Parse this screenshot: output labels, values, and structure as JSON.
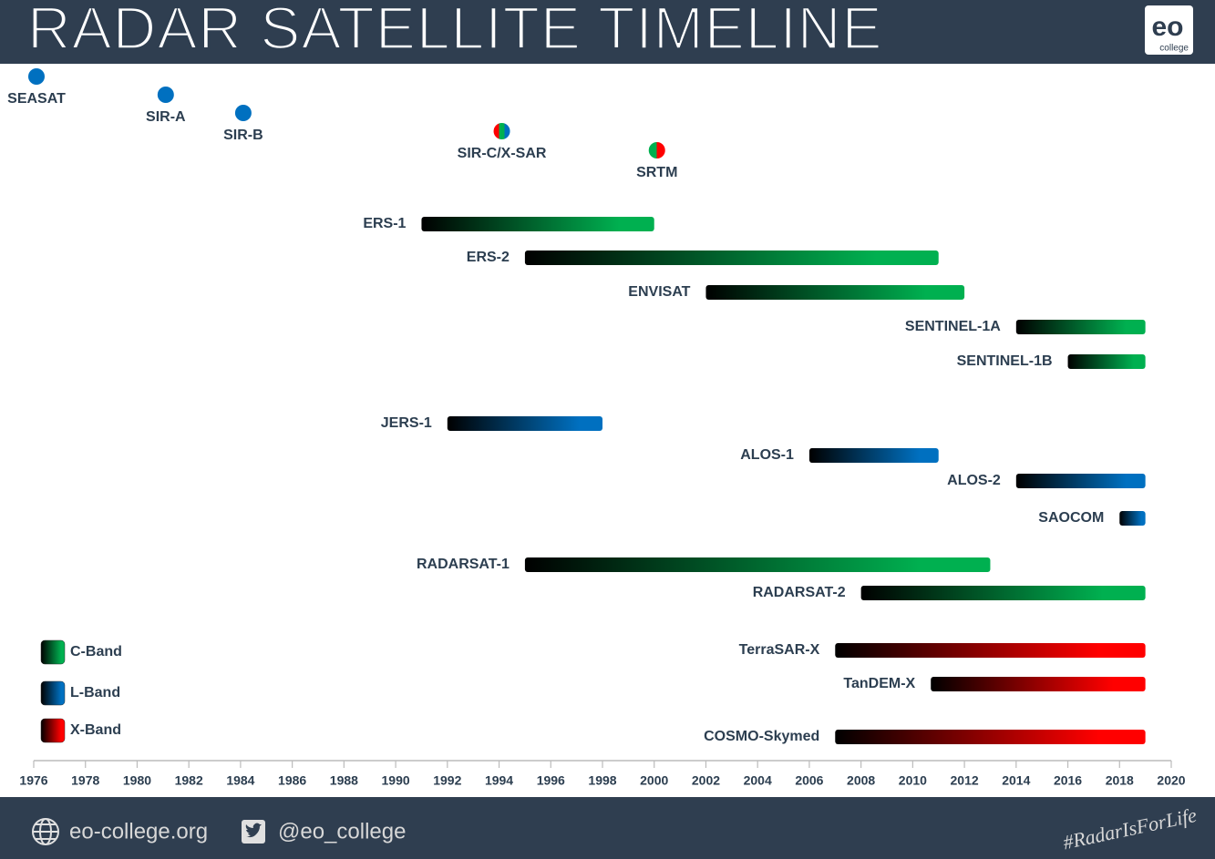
{
  "header": {
    "logo": "eo",
    "logo_sub": "college"
  },
  "chart_data": {
    "type": "timeline",
    "title": "RADAR SATELLITE TIMELINE",
    "xlim": [
      1976,
      2020
    ],
    "xticks": [
      1976,
      1978,
      1980,
      1982,
      1984,
      1986,
      1988,
      1990,
      1992,
      1994,
      1996,
      1998,
      2000,
      2002,
      2004,
      2006,
      2008,
      2010,
      2012,
      2014,
      2016,
      2018,
      2020
    ],
    "legend": [
      {
        "name": "C-Band",
        "color": "#00b050"
      },
      {
        "name": "L-Band",
        "color": "#0070c0"
      },
      {
        "name": "X-Band",
        "color": "#ff0000"
      }
    ],
    "events": [
      {
        "name": "SEASAT",
        "x": 1976,
        "colors": [
          "#0070c0"
        ]
      },
      {
        "name": "SIR-A",
        "x": 1981,
        "colors": [
          "#0070c0"
        ]
      },
      {
        "name": "SIR-B",
        "x": 1984,
        "colors": [
          "#0070c0"
        ]
      },
      {
        "name": "SIR-C/X-SAR",
        "x": 1994,
        "colors": [
          "#ff0000",
          "#00b050",
          "#0070c0"
        ]
      },
      {
        "name": "SRTM",
        "x": 2000,
        "colors": [
          "#00b050",
          "#ff0000"
        ]
      }
    ],
    "bars": [
      {
        "name": "ERS-1",
        "start": 1991,
        "end": 2000,
        "color": "#00b050"
      },
      {
        "name": "ERS-2",
        "start": 1995,
        "end": 2011,
        "color": "#00b050"
      },
      {
        "name": "ENVISAT",
        "start": 2002,
        "end": 2012,
        "color": "#00b050"
      },
      {
        "name": "SENTINEL-1A",
        "start": 2014,
        "end": 2019,
        "color": "#00b050"
      },
      {
        "name": "SENTINEL-1B",
        "start": 2016,
        "end": 2019,
        "color": "#00b050"
      },
      {
        "name": "JERS-1",
        "start": 1992,
        "end": 1998,
        "color": "#0070c0"
      },
      {
        "name": "ALOS-1",
        "start": 2006,
        "end": 2011,
        "color": "#0070c0"
      },
      {
        "name": "ALOS-2",
        "start": 2014,
        "end": 2019,
        "color": "#0070c0"
      },
      {
        "name": "SAOCOM",
        "start": 2018,
        "end": 2019,
        "color": "#0070c0"
      },
      {
        "name": "RADARSAT-1",
        "start": 1995,
        "end": 2013,
        "color": "#00b050"
      },
      {
        "name": "RADARSAT-2",
        "start": 2008,
        "end": 2019,
        "color": "#00b050"
      },
      {
        "name": "TerraSAR-X",
        "start": 2007,
        "end": 2019,
        "color": "#ff0000"
      },
      {
        "name": "TanDEM-X",
        "start": 2010.7,
        "end": 2019,
        "color": "#ff0000"
      },
      {
        "name": "COSMO-Skymed",
        "start": 2007,
        "end": 2019,
        "color": "#ff0000"
      }
    ]
  },
  "footer": {
    "website": "eo-college.org",
    "twitter": "@eo_college",
    "hashtag": "#RadarIsForLife"
  }
}
